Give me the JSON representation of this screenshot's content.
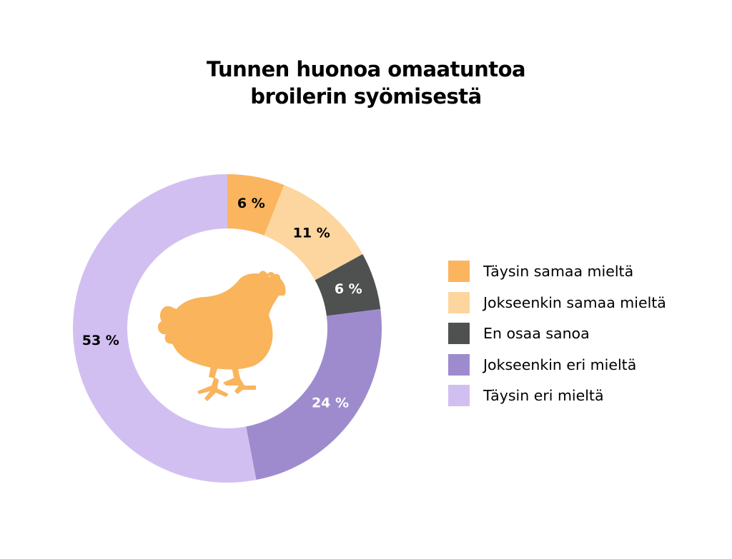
{
  "title_lines": [
    "Tunnen huonoa omaatuntoa",
    "broilerin syömisestä"
  ],
  "colors": {
    "taysin_samaa": "#fbb55f",
    "jokseenkin_samaa": "#fdd59e",
    "en_osaa": "#4e5150",
    "jokseenkin_eri": "#9e8bce",
    "taysin_eri": "#d2bff1",
    "chicken": "#f9b45c"
  },
  "center_icon": "chicken-icon",
  "chart_data": {
    "type": "pie",
    "donut": true,
    "title": "Tunnen huonoa omaatuntoa broilerin syömisestä",
    "start": "top",
    "direction": "clockwise",
    "legend_position": "right",
    "slices": [
      {
        "name": "Täysin samaa mieltä",
        "value": 6,
        "label": "6 %",
        "color": "#fbb55f",
        "label_color": "#000000"
      },
      {
        "name": "Jokseenkin samaa mieltä",
        "value": 11,
        "label": "11 %",
        "color": "#fdd59e",
        "label_color": "#000000"
      },
      {
        "name": "En osaa sanoa",
        "value": 6,
        "label": "6 %",
        "color": "#4e5150",
        "label_color": "#ffffff"
      },
      {
        "name": "Jokseenkin eri mieltä",
        "value": 24,
        "label": "24 %",
        "color": "#9e8bce",
        "label_color": "#ffffff"
      },
      {
        "name": "Täysin eri mieltä",
        "value": 53,
        "label": "53 %",
        "color": "#d2bff1",
        "label_color": "#000000"
      }
    ]
  }
}
